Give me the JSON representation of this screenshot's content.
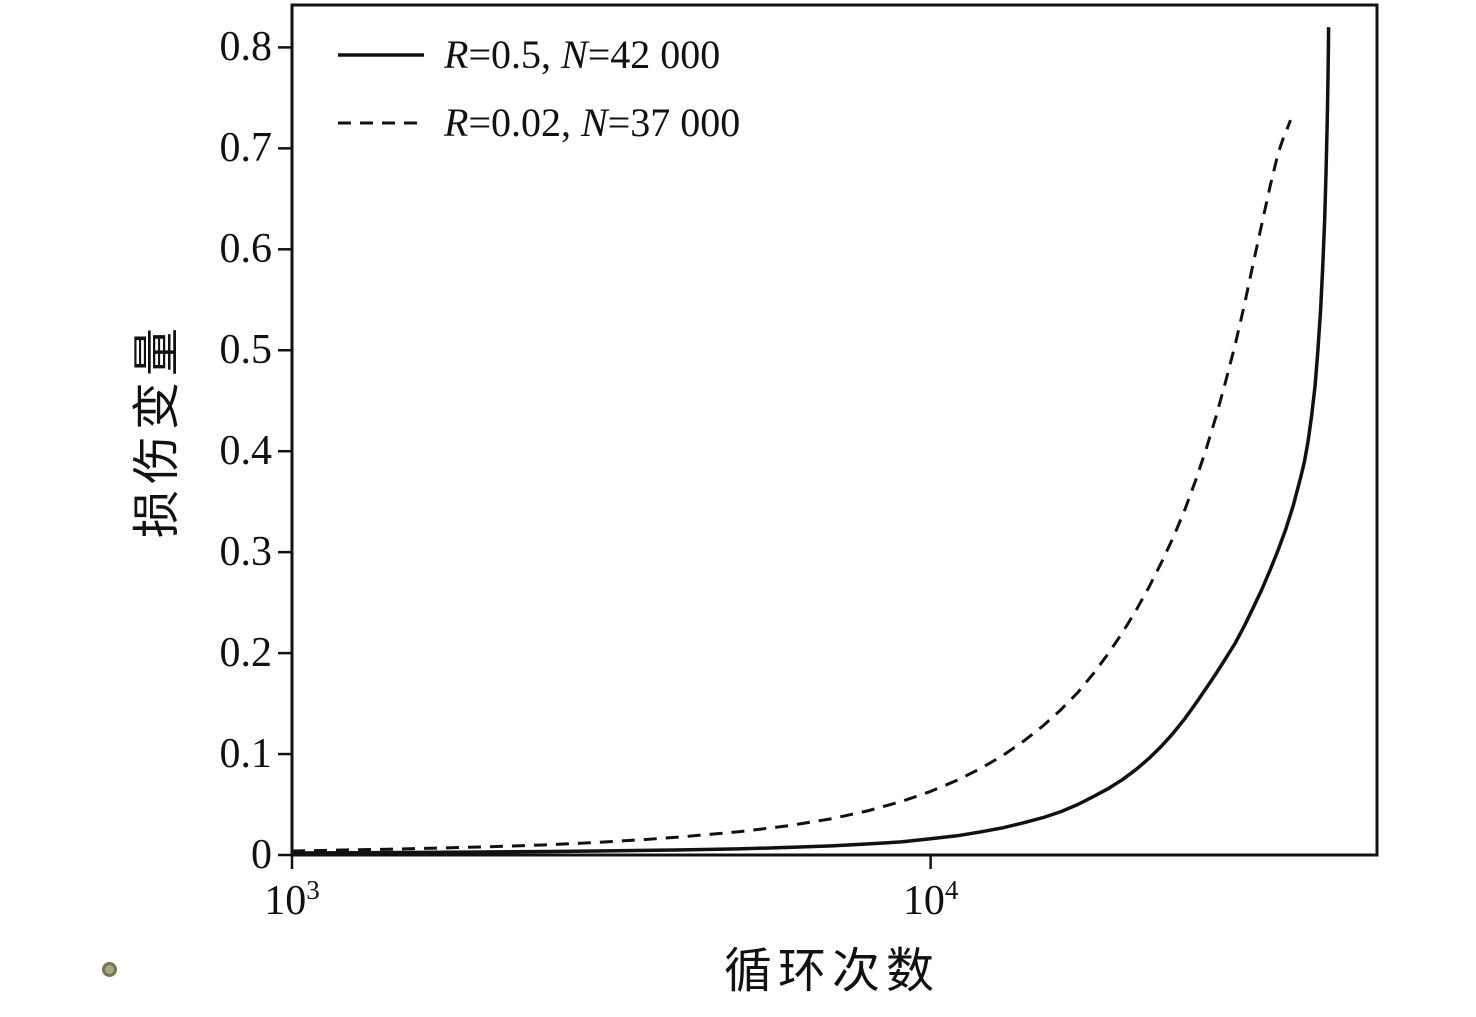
{
  "chart_data": {
    "type": "line",
    "title": "",
    "xlabel": "循环次数",
    "ylabel": "损伤变量",
    "x_scale": "log",
    "xlim": [
      1000,
      50000
    ],
    "ylim": [
      0,
      0.842
    ],
    "grid": false,
    "legend_position": "top-left",
    "frame_color": "#111111",
    "x_ticks": [
      {
        "value": 1000,
        "base": "10",
        "exp": "3"
      },
      {
        "value": 10000,
        "base": "10",
        "exp": "4"
      }
    ],
    "y_ticks": [
      {
        "value": 0.0,
        "label": "0"
      },
      {
        "value": 0.1,
        "label": "0.1"
      },
      {
        "value": 0.2,
        "label": "0.2"
      },
      {
        "value": 0.3,
        "label": "0.3"
      },
      {
        "value": 0.4,
        "label": "0.4"
      },
      {
        "value": 0.5,
        "label": "0.5"
      },
      {
        "value": 0.6,
        "label": "0.6"
      },
      {
        "value": 0.7,
        "label": "0.7"
      },
      {
        "value": 0.8,
        "label": "0.8"
      }
    ],
    "series": [
      {
        "name": "R=0.5, N=42 000",
        "style": "solid",
        "color": "#111111",
        "width": 3.5,
        "legend": {
          "var1": "R",
          "mid1": "=0.5, ",
          "var2": "N",
          "mid2": "=42 000"
        },
        "points": [
          [
            1000,
            0.002
          ],
          [
            1500,
            0.0025
          ],
          [
            2000,
            0.003
          ],
          [
            2500,
            0.0035
          ],
          [
            3000,
            0.004
          ],
          [
            4000,
            0.005
          ],
          [
            5000,
            0.006
          ],
          [
            6000,
            0.0075
          ],
          [
            7000,
            0.009
          ],
          [
            8000,
            0.011
          ],
          [
            9000,
            0.013
          ],
          [
            10000,
            0.016
          ],
          [
            11000,
            0.019
          ],
          [
            12000,
            0.023
          ],
          [
            13000,
            0.027
          ],
          [
            14000,
            0.032
          ],
          [
            15000,
            0.037
          ],
          [
            16000,
            0.043
          ],
          [
            17000,
            0.05
          ],
          [
            18000,
            0.058
          ],
          [
            19000,
            0.066
          ],
          [
            20000,
            0.075
          ],
          [
            21000,
            0.085
          ],
          [
            22000,
            0.096
          ],
          [
            23000,
            0.108
          ],
          [
            24000,
            0.121
          ],
          [
            25000,
            0.135
          ],
          [
            26000,
            0.15
          ],
          [
            27000,
            0.165
          ],
          [
            28000,
            0.18
          ],
          [
            29000,
            0.195
          ],
          [
            30000,
            0.21
          ],
          [
            31000,
            0.227
          ],
          [
            32000,
            0.245
          ],
          [
            33000,
            0.263
          ],
          [
            34000,
            0.282
          ],
          [
            35000,
            0.302
          ],
          [
            36000,
            0.323
          ],
          [
            37000,
            0.347
          ],
          [
            38000,
            0.375
          ],
          [
            38500,
            0.39
          ],
          [
            39000,
            0.41
          ],
          [
            39500,
            0.435
          ],
          [
            40000,
            0.465
          ],
          [
            40400,
            0.5
          ],
          [
            40800,
            0.54
          ],
          [
            41100,
            0.58
          ],
          [
            41400,
            0.63
          ],
          [
            41600,
            0.675
          ],
          [
            41800,
            0.73
          ],
          [
            41900,
            0.77
          ],
          [
            41960,
            0.8
          ],
          [
            42000,
            0.82
          ]
        ]
      },
      {
        "name": "R=0.02, N=37 000",
        "style": "dashed",
        "color": "#111111",
        "width": 3,
        "dash": "13 9",
        "legend": {
          "var1": "R",
          "mid1": "=0.02, ",
          "var2": "N",
          "mid2": "=37 000"
        },
        "points": [
          [
            1000,
            0.004
          ],
          [
            1500,
            0.006
          ],
          [
            2000,
            0.008
          ],
          [
            2500,
            0.01
          ],
          [
            3000,
            0.0125
          ],
          [
            3500,
            0.015
          ],
          [
            4000,
            0.0175
          ],
          [
            5000,
            0.023
          ],
          [
            6000,
            0.029
          ],
          [
            7000,
            0.036
          ],
          [
            8000,
            0.044
          ],
          [
            9000,
            0.053
          ],
          [
            10000,
            0.063
          ],
          [
            11000,
            0.074
          ],
          [
            12000,
            0.086
          ],
          [
            13000,
            0.099
          ],
          [
            14000,
            0.113
          ],
          [
            15000,
            0.128
          ],
          [
            16000,
            0.144
          ],
          [
            17000,
            0.161
          ],
          [
            18000,
            0.18
          ],
          [
            19000,
            0.2
          ],
          [
            20000,
            0.221
          ],
          [
            21000,
            0.243
          ],
          [
            22000,
            0.266
          ],
          [
            23000,
            0.29
          ],
          [
            24000,
            0.315
          ],
          [
            25000,
            0.342
          ],
          [
            26000,
            0.371
          ],
          [
            27000,
            0.402
          ],
          [
            28000,
            0.435
          ],
          [
            29000,
            0.47
          ],
          [
            30000,
            0.506
          ],
          [
            31000,
            0.545
          ],
          [
            32000,
            0.586
          ],
          [
            33000,
            0.625
          ],
          [
            34000,
            0.662
          ],
          [
            35000,
            0.695
          ],
          [
            35700,
            0.711
          ],
          [
            36200,
            0.72
          ],
          [
            36600,
            0.728
          ]
        ]
      }
    ]
  },
  "decor": {
    "stray_dot_color": "#a8a87e"
  }
}
